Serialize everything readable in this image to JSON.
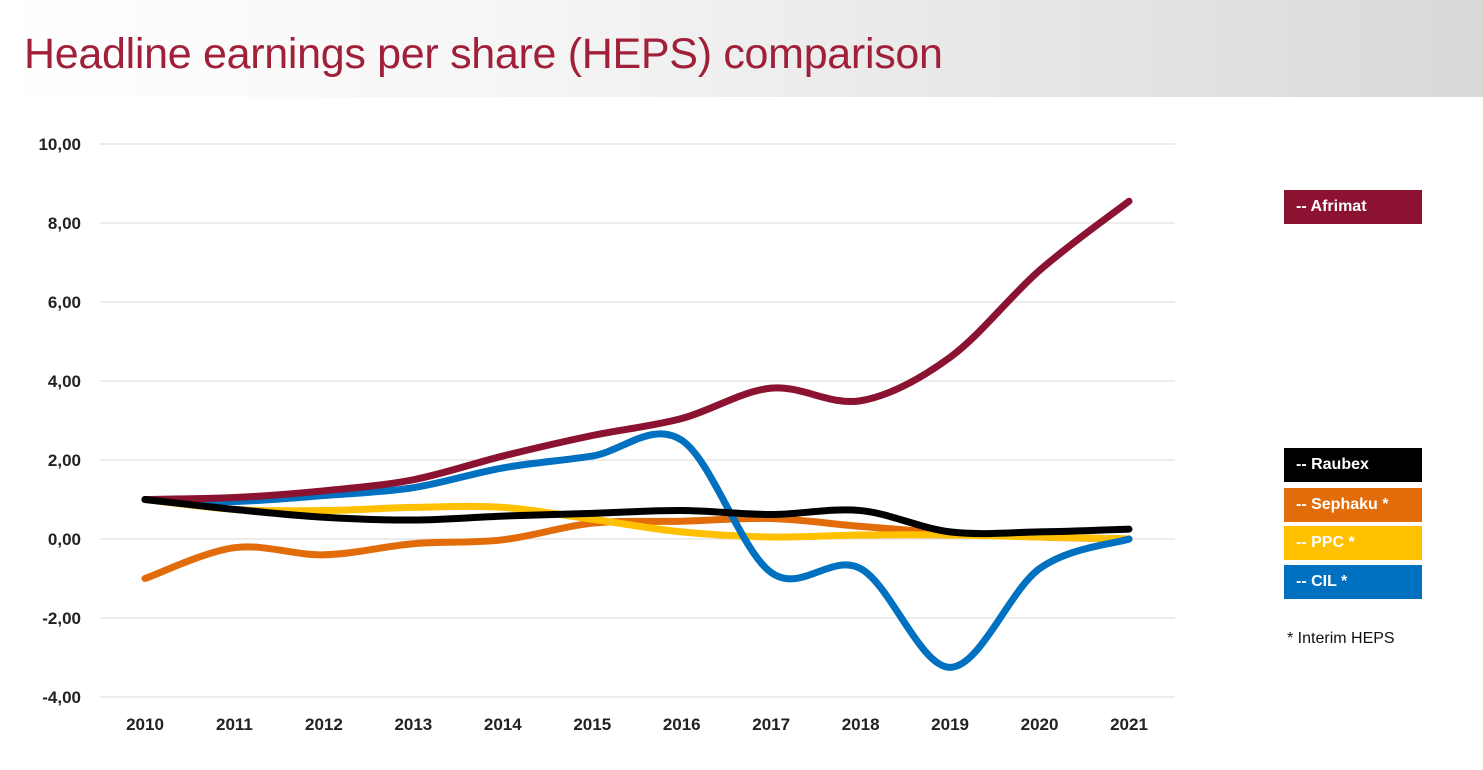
{
  "header": {
    "title": "Headline earnings per share (HEPS) comparison"
  },
  "legend": {
    "items": [
      {
        "label": "--  Afrimat",
        "color": "#8b1230",
        "series": "Afrimat"
      },
      {
        "label": "--  Raubex",
        "color": "#000000",
        "series": "Raubex"
      },
      {
        "label": "--  Sephaku *",
        "color": "#e36c0a",
        "series": "Sephaku"
      },
      {
        "label": "--  PPC *",
        "color": "#ffc000",
        "series": "PPC"
      },
      {
        "label": "--  CIL *",
        "color": "#0070c0",
        "series": "CIL"
      }
    ],
    "note": "* Interim HEPS"
  },
  "chart_data": {
    "type": "line",
    "title": "Headline earnings per share (HEPS) comparison",
    "xlabel": "",
    "ylabel": "",
    "categories": [
      "2010",
      "2011",
      "2012",
      "2013",
      "2014",
      "2015",
      "2016",
      "2017",
      "2018",
      "2019",
      "2020",
      "2021"
    ],
    "ylim": [
      -4,
      10
    ],
    "yticks": [
      10,
      8,
      6,
      4,
      2,
      0,
      -2,
      -4
    ],
    "ytick_labels": [
      "10,00",
      "8,00",
      "6,00",
      "4,00",
      "2,00",
      "0,00",
      "-2,00",
      "-4,00"
    ],
    "grid": true,
    "smooth": true,
    "legend_position": "right",
    "series": [
      {
        "name": "Sephaku *",
        "color": "#e36c0a",
        "values": [
          -1.0,
          -0.22,
          -0.4,
          -0.12,
          -0.02,
          0.4,
          0.45,
          0.52,
          0.32,
          0.15,
          0.05,
          0.0
        ]
      },
      {
        "name": "PPC *",
        "color": "#ffc000",
        "values": [
          1.0,
          0.75,
          0.72,
          0.8,
          0.8,
          0.5,
          0.18,
          0.05,
          0.1,
          0.1,
          0.05,
          0.0
        ]
      },
      {
        "name": "CIL *",
        "color": "#0070c0",
        "values": [
          1.0,
          0.95,
          1.1,
          1.3,
          1.8,
          2.1,
          2.5,
          -0.85,
          -0.75,
          -3.25,
          -0.75,
          0.0
        ]
      },
      {
        "name": "Afrimat",
        "color": "#8b1230",
        "values": [
          1.0,
          1.05,
          1.22,
          1.5,
          2.1,
          2.62,
          3.05,
          3.82,
          3.5,
          4.6,
          6.8,
          8.55
        ]
      },
      {
        "name": "Raubex",
        "color": "#000000",
        "values": [
          1.0,
          0.75,
          0.55,
          0.48,
          0.58,
          0.65,
          0.72,
          0.62,
          0.72,
          0.18,
          0.18,
          0.25
        ]
      }
    ]
  }
}
